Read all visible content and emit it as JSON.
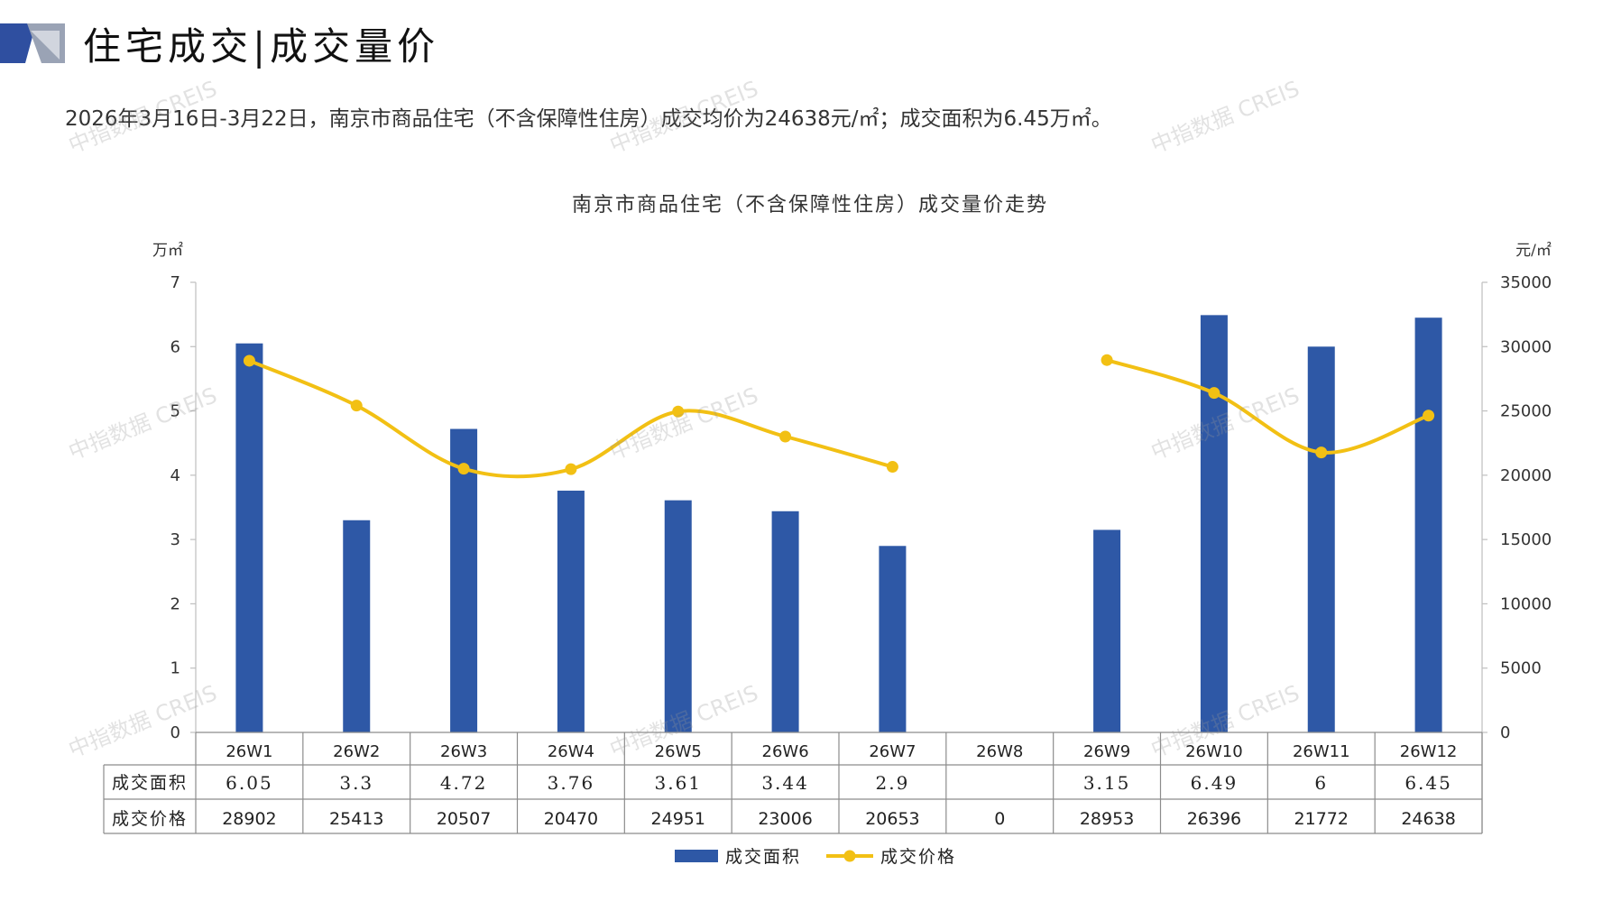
{
  "header": {
    "title": "住宅成交|成交量价",
    "summary": "2026年3月16日-3月22日，南京市商品住宅（不含保障性住房）成交均价为24638元/㎡；成交面积为6.45万㎡。"
  },
  "watermark": "中指数据 CREIS",
  "colors": {
    "bar": "#2E58A6",
    "line": "#F2C014",
    "grid": "#bfbfbf",
    "logo_dark": "#2F4FA0",
    "logo_light": "#9aa3b5"
  },
  "chart_data": {
    "type": "bar",
    "title": "南京市商品住宅（不含保障性住房）成交量价走势",
    "categories": [
      "26W1",
      "26W2",
      "26W3",
      "26W4",
      "26W5",
      "26W6",
      "26W7",
      "26W8",
      "26W9",
      "26W10",
      "26W11",
      "26W12"
    ],
    "left_axis": {
      "unit": "万㎡",
      "ylim": [
        0,
        7
      ],
      "ticks": [
        "0",
        "1",
        "2",
        "3",
        "4",
        "5",
        "6",
        "7"
      ]
    },
    "right_axis": {
      "unit": "元/㎡",
      "ylim": [
        0,
        35000
      ],
      "ticks": [
        "0",
        "5000",
        "10000",
        "15000",
        "20000",
        "25000",
        "30000",
        "35000"
      ]
    },
    "series": [
      {
        "name": "成交面积",
        "type": "bar",
        "axis": "left",
        "values": [
          6.05,
          3.3,
          4.72,
          3.76,
          3.61,
          3.44,
          2.9,
          null,
          3.15,
          6.49,
          6,
          6.45
        ],
        "labels": [
          "6.05",
          "3.3",
          "4.72",
          "3.76",
          "3.61",
          "3.44",
          "2.9",
          "",
          "3.15",
          "6.49",
          "6",
          "6.45"
        ]
      },
      {
        "name": "成交价格",
        "type": "line",
        "axis": "right",
        "values": [
          28902,
          25413,
          20507,
          20470,
          24951,
          23006,
          20653,
          0,
          28953,
          26396,
          21772,
          24638
        ],
        "labels": [
          "28902",
          "25413",
          "20507",
          "20470",
          "24951",
          "23006",
          "20653",
          "0",
          "28953",
          "26396",
          "21772",
          "24638"
        ]
      }
    ],
    "legend": [
      "成交面积",
      "成交价格"
    ],
    "legend_position": "bottom"
  }
}
